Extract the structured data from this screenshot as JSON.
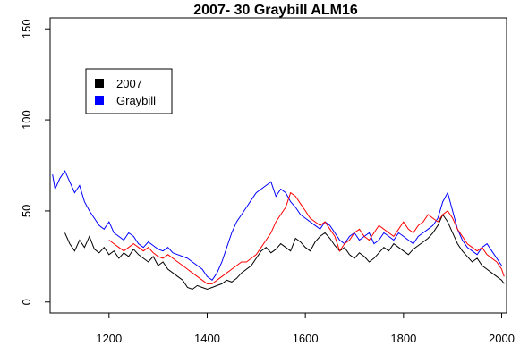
{
  "chart_data": {
    "type": "line",
    "title": "2007- 30     Graybill  ALM16",
    "xlabel": "",
    "ylabel": "",
    "xlim": [
      1080,
      2010
    ],
    "ylim": [
      -6,
      156
    ],
    "x_ticks": [
      1200,
      1400,
      1600,
      1800,
      2000
    ],
    "y_ticks": [
      0,
      50,
      100,
      150
    ],
    "grid": false,
    "legend": {
      "placement": "top-left",
      "entries": [
        {
          "label": "2007",
          "color": "#000000"
        },
        {
          "label": "Graybill",
          "color": "#0000ff"
        }
      ]
    },
    "series": [
      {
        "name": "2007",
        "color": "#000000",
        "x": [
          1110,
          1120,
          1130,
          1140,
          1150,
          1160,
          1170,
          1180,
          1190,
          1200,
          1210,
          1220,
          1230,
          1240,
          1250,
          1260,
          1270,
          1280,
          1290,
          1300,
          1310,
          1320,
          1330,
          1340,
          1350,
          1360,
          1370,
          1380,
          1390,
          1400,
          1410,
          1420,
          1430,
          1440,
          1450,
          1460,
          1470,
          1480,
          1490,
          1500,
          1510,
          1520,
          1530,
          1540,
          1550,
          1560,
          1570,
          1580,
          1590,
          1600,
          1610,
          1620,
          1630,
          1640,
          1650,
          1660,
          1670,
          1680,
          1690,
          1700,
          1710,
          1720,
          1730,
          1740,
          1750,
          1760,
          1770,
          1780,
          1790,
          1800,
          1810,
          1820,
          1830,
          1840,
          1850,
          1860,
          1870,
          1880,
          1890,
          1900,
          1910,
          1920,
          1930,
          1940,
          1950,
          1960,
          1970,
          1980,
          1990,
          2000,
          2005
        ],
        "y": [
          38,
          32,
          28,
          34,
          30,
          36,
          29,
          27,
          30,
          26,
          28,
          24,
          27,
          25,
          29,
          26,
          24,
          22,
          25,
          20,
          22,
          18,
          16,
          14,
          12,
          8,
          7,
          9,
          8,
          7,
          8,
          9,
          10,
          12,
          11,
          13,
          16,
          18,
          20,
          24,
          28,
          30,
          27,
          29,
          32,
          30,
          28,
          35,
          33,
          30,
          28,
          33,
          36,
          38,
          35,
          31,
          28,
          30,
          26,
          24,
          27,
          25,
          22,
          24,
          27,
          30,
          28,
          32,
          30,
          28,
          26,
          29,
          31,
          33,
          35,
          38,
          42,
          48,
          44,
          38,
          32,
          28,
          25,
          22,
          24,
          20,
          18,
          16,
          14,
          12,
          10
        ]
      },
      {
        "name": "Graybill",
        "color": "#0000ff",
        "x": [
          1085,
          1090,
          1100,
          1110,
          1120,
          1130,
          1140,
          1150,
          1160,
          1170,
          1180,
          1190,
          1200,
          1210,
          1220,
          1230,
          1240,
          1250,
          1260,
          1270,
          1280,
          1290,
          1300,
          1310,
          1320,
          1330,
          1340,
          1350,
          1360,
          1370,
          1380,
          1390,
          1400,
          1410,
          1420,
          1430,
          1440,
          1450,
          1460,
          1470,
          1480,
          1490,
          1500,
          1510,
          1520,
          1530,
          1540,
          1550,
          1560,
          1570,
          1580,
          1590,
          1600,
          1610,
          1620,
          1630,
          1640,
          1650,
          1660,
          1670,
          1680,
          1690,
          1700,
          1710,
          1720,
          1730,
          1740,
          1750,
          1760,
          1770,
          1780,
          1790,
          1800,
          1810,
          1820,
          1830,
          1840,
          1850,
          1860,
          1870,
          1880,
          1890,
          1900,
          1910,
          1920,
          1930,
          1940,
          1950,
          1960,
          1970,
          1980,
          1990,
          2000
        ],
        "y": [
          70,
          62,
          68,
          72,
          66,
          60,
          64,
          55,
          50,
          46,
          42,
          40,
          44,
          38,
          36,
          34,
          38,
          36,
          32,
          30,
          33,
          31,
          29,
          28,
          30,
          27,
          26,
          25,
          24,
          22,
          20,
          18,
          14,
          12,
          16,
          22,
          30,
          38,
          44,
          48,
          52,
          56,
          60,
          62,
          64,
          66,
          58,
          62,
          60,
          55,
          52,
          48,
          46,
          44,
          42,
          40,
          44,
          42,
          38,
          34,
          32,
          36,
          38,
          34,
          36,
          38,
          32,
          34,
          38,
          36,
          34,
          38,
          36,
          34,
          32,
          36,
          38,
          40,
          42,
          46,
          55,
          60,
          50,
          40,
          34,
          30,
          28,
          26,
          30,
          32,
          28,
          24,
          20
        ]
      },
      {
        "name": "",
        "color": "#ff0000",
        "x": [
          1200,
          1210,
          1220,
          1230,
          1240,
          1250,
          1260,
          1270,
          1280,
          1290,
          1300,
          1310,
          1320,
          1330,
          1340,
          1350,
          1360,
          1370,
          1380,
          1390,
          1400,
          1410,
          1420,
          1430,
          1440,
          1450,
          1460,
          1470,
          1480,
          1490,
          1500,
          1510,
          1520,
          1530,
          1540,
          1550,
          1560,
          1570,
          1580,
          1590,
          1600,
          1610,
          1620,
          1630,
          1640,
          1650,
          1660,
          1670,
          1680,
          1690,
          1700,
          1710,
          1720,
          1730,
          1740,
          1750,
          1760,
          1770,
          1780,
          1790,
          1800,
          1810,
          1820,
          1830,
          1840,
          1850,
          1860,
          1870,
          1880,
          1890,
          1900,
          1910,
          1920,
          1930,
          1940,
          1950,
          1960,
          1970,
          1980,
          1990,
          2000,
          2005
        ],
        "y": [
          34,
          32,
          30,
          28,
          30,
          32,
          30,
          28,
          30,
          27,
          25,
          24,
          26,
          24,
          22,
          20,
          18,
          16,
          14,
          12,
          10,
          10,
          12,
          14,
          16,
          18,
          20,
          22,
          22,
          24,
          26,
          30,
          34,
          38,
          44,
          48,
          52,
          60,
          58,
          54,
          50,
          46,
          44,
          42,
          44,
          40,
          36,
          28,
          32,
          34,
          38,
          40,
          36,
          34,
          38,
          42,
          40,
          38,
          36,
          40,
          44,
          40,
          38,
          42,
          44,
          48,
          46,
          44,
          48,
          50,
          46,
          40,
          36,
          32,
          30,
          28,
          30,
          26,
          24,
          22,
          18,
          14
        ]
      }
    ]
  }
}
